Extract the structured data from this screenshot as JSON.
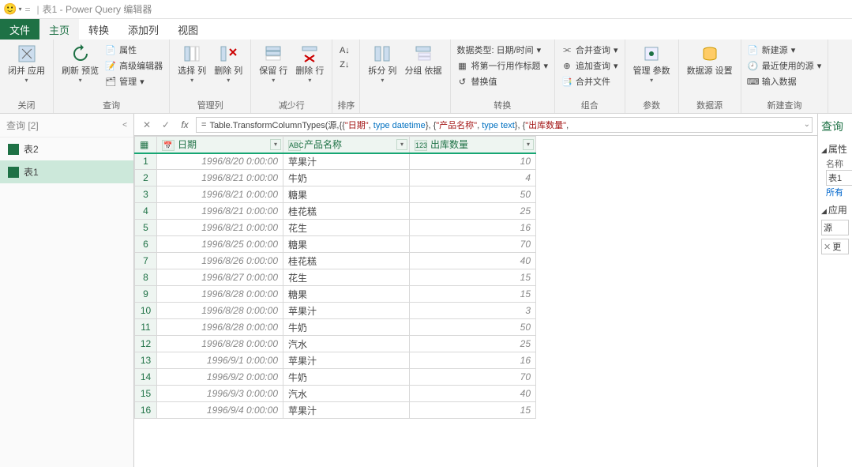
{
  "titlebar": {
    "doc": "表1",
    "app": "Power Query 编辑器"
  },
  "tabs": {
    "file": "文件",
    "home": "主页",
    "transform": "转换",
    "addcol": "添加列",
    "view": "视图"
  },
  "ribbon": {
    "close": {
      "btn": "闭并\n应用",
      "label": "关闭"
    },
    "query": {
      "refresh": "刷新\n预览",
      "props": "属性",
      "adv": "高级编辑器",
      "manage": "管理",
      "label": "查询"
    },
    "cols": {
      "choose": "选择\n列",
      "remove": "删除\n列",
      "label": "管理列"
    },
    "rows": {
      "keep": "保留\n行",
      "remove": "删除\n行",
      "label": "减少行"
    },
    "sort": {
      "label": "排序"
    },
    "split": {
      "split": "拆分\n列",
      "group": "分组\n依据",
      "label": ""
    },
    "transform": {
      "datatype": "数据类型: 日期/时间",
      "firstrow": "将第一行用作标题",
      "replace": "替换值",
      "label": "转换"
    },
    "combine": {
      "merge": "合并查询",
      "append": "追加查询",
      "files": "合并文件",
      "label": "组合"
    },
    "params": {
      "btn": "管理\n参数",
      "label": "参数"
    },
    "ds": {
      "btn": "数据源\n设置",
      "label": "数据源"
    },
    "newq": {
      "new": "新建源",
      "recent": "最近使用的源",
      "enter": "输入数据",
      "label": "新建查询"
    }
  },
  "queries": {
    "header": "查询 [2]",
    "items": [
      "表2",
      "表1"
    ],
    "selected": 1
  },
  "formula_parts": {
    "prefix": "Table.TransformColumnTypes(源,{{",
    "s1": "\"日期\"",
    "t1": "type datetime",
    "mid1": "}, {",
    "s2": "\"产品名称\"",
    "t2": "type text",
    "mid2": "}, {",
    "s3": "\"出库数量\"",
    "suffix": ","
  },
  "grid": {
    "columns": [
      {
        "name": "日期",
        "type": "datetime",
        "typeLabel": "📅"
      },
      {
        "name": "产品名称",
        "type": "text",
        "typeLabel": "ABC"
      },
      {
        "name": "出库数量",
        "type": "int",
        "typeLabel": "123"
      }
    ],
    "rows": [
      [
        "1996/8/20 0:00:00",
        "苹果汁",
        10
      ],
      [
        "1996/8/21 0:00:00",
        "牛奶",
        4
      ],
      [
        "1996/8/21 0:00:00",
        "糖果",
        50
      ],
      [
        "1996/8/21 0:00:00",
        "桂花糕",
        25
      ],
      [
        "1996/8/21 0:00:00",
        "花生",
        16
      ],
      [
        "1996/8/25 0:00:00",
        "糖果",
        70
      ],
      [
        "1996/8/26 0:00:00",
        "桂花糕",
        40
      ],
      [
        "1996/8/27 0:00:00",
        "花生",
        15
      ],
      [
        "1996/8/28 0:00:00",
        "糖果",
        15
      ],
      [
        "1996/8/28 0:00:00",
        "苹果汁",
        3
      ],
      [
        "1996/8/28 0:00:00",
        "牛奶",
        50
      ],
      [
        "1996/8/28 0:00:00",
        "汽水",
        25
      ],
      [
        "1996/9/1 0:00:00",
        "苹果汁",
        16
      ],
      [
        "1996/9/2 0:00:00",
        "牛奶",
        70
      ],
      [
        "1996/9/3 0:00:00",
        "汽水",
        40
      ],
      [
        "1996/9/4 0:00:00",
        "苹果汁",
        15
      ]
    ]
  },
  "rpanel": {
    "title": "查询",
    "props": "属性",
    "nameLabel": "名称",
    "nameValue": "表1",
    "allprops": "所有",
    "steps": "应用",
    "step1": "源",
    "step2": "更"
  },
  "colors": {
    "accent": "#1e7145",
    "headerbg": "#eef5f1",
    "selrow": "#cce8da"
  }
}
